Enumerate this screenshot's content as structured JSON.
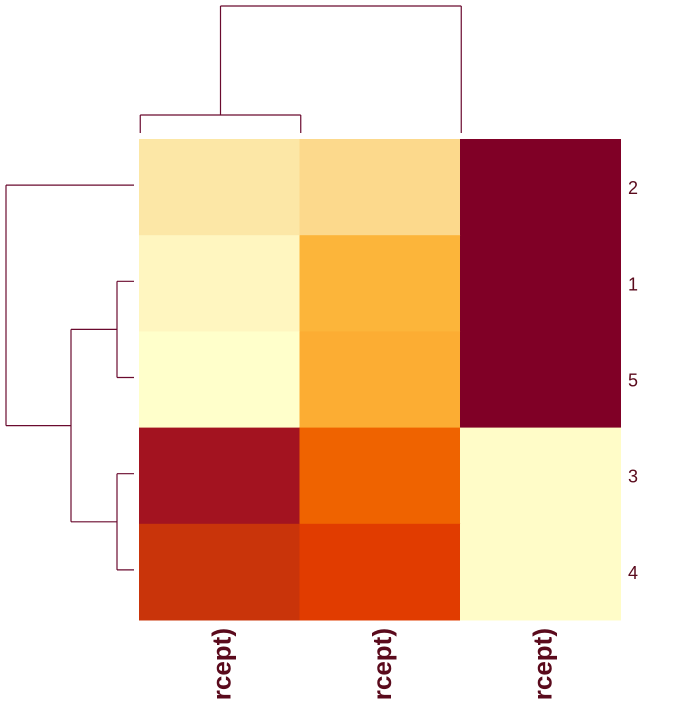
{
  "chart_data": {
    "type": "heatmap",
    "rows": [
      "2",
      "1",
      "5",
      "3",
      "4"
    ],
    "columns": [
      "(Intercept)",
      "(Intercept)",
      "(Intercept)"
    ],
    "visible_column_labels": [
      "rcept)",
      "rcept)",
      "rcept)"
    ],
    "cells": [
      [
        "#fce7a6",
        "#fcd98c",
        "#800026"
      ],
      [
        "#fff6c0",
        "#fcb53a",
        "#800026"
      ],
      [
        "#ffffcb",
        "#fcad33",
        "#800026"
      ],
      [
        "#a31320",
        "#ef6300",
        "#fffcc8"
      ],
      [
        "#c9340a",
        "#e13c00",
        "#fffcc8"
      ]
    ],
    "color_scale": "YlOrRd (reversed: dark red = low, pale yellow = high)",
    "row_dendrogram": "((2,((1,5),(3,4))))",
    "column_dendrogram": "((col1,col2),col3)",
    "line_color": "#6a0a2e",
    "label_color": "#5a0a1c",
    "title": "",
    "xlabel": "",
    "ylabel": ""
  }
}
